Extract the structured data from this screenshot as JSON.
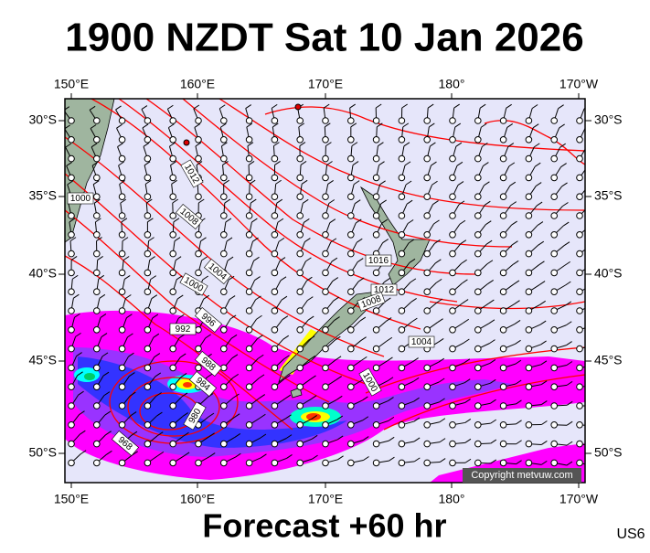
{
  "header": {
    "title": "1900 NZDT Sat 10 Jan 2026"
  },
  "map": {
    "lon_labels": [
      "150°E",
      "160°E",
      "170°E",
      "180°",
      "170°W"
    ],
    "lat_labels": [
      "30°S",
      "35°S",
      "40°S",
      "45°S",
      "50°S"
    ],
    "isobar_labels": [
      "1012",
      "1000",
      "1008",
      "1004",
      "1000",
      "996",
      "992",
      "988",
      "984",
      "980",
      "968",
      "1016",
      "1012",
      "1008",
      "1004",
      "1000"
    ],
    "copyright": "Copyright metvuw.com"
  },
  "footer": {
    "forecast": "Forecast +60 hr",
    "code": "US6"
  }
}
